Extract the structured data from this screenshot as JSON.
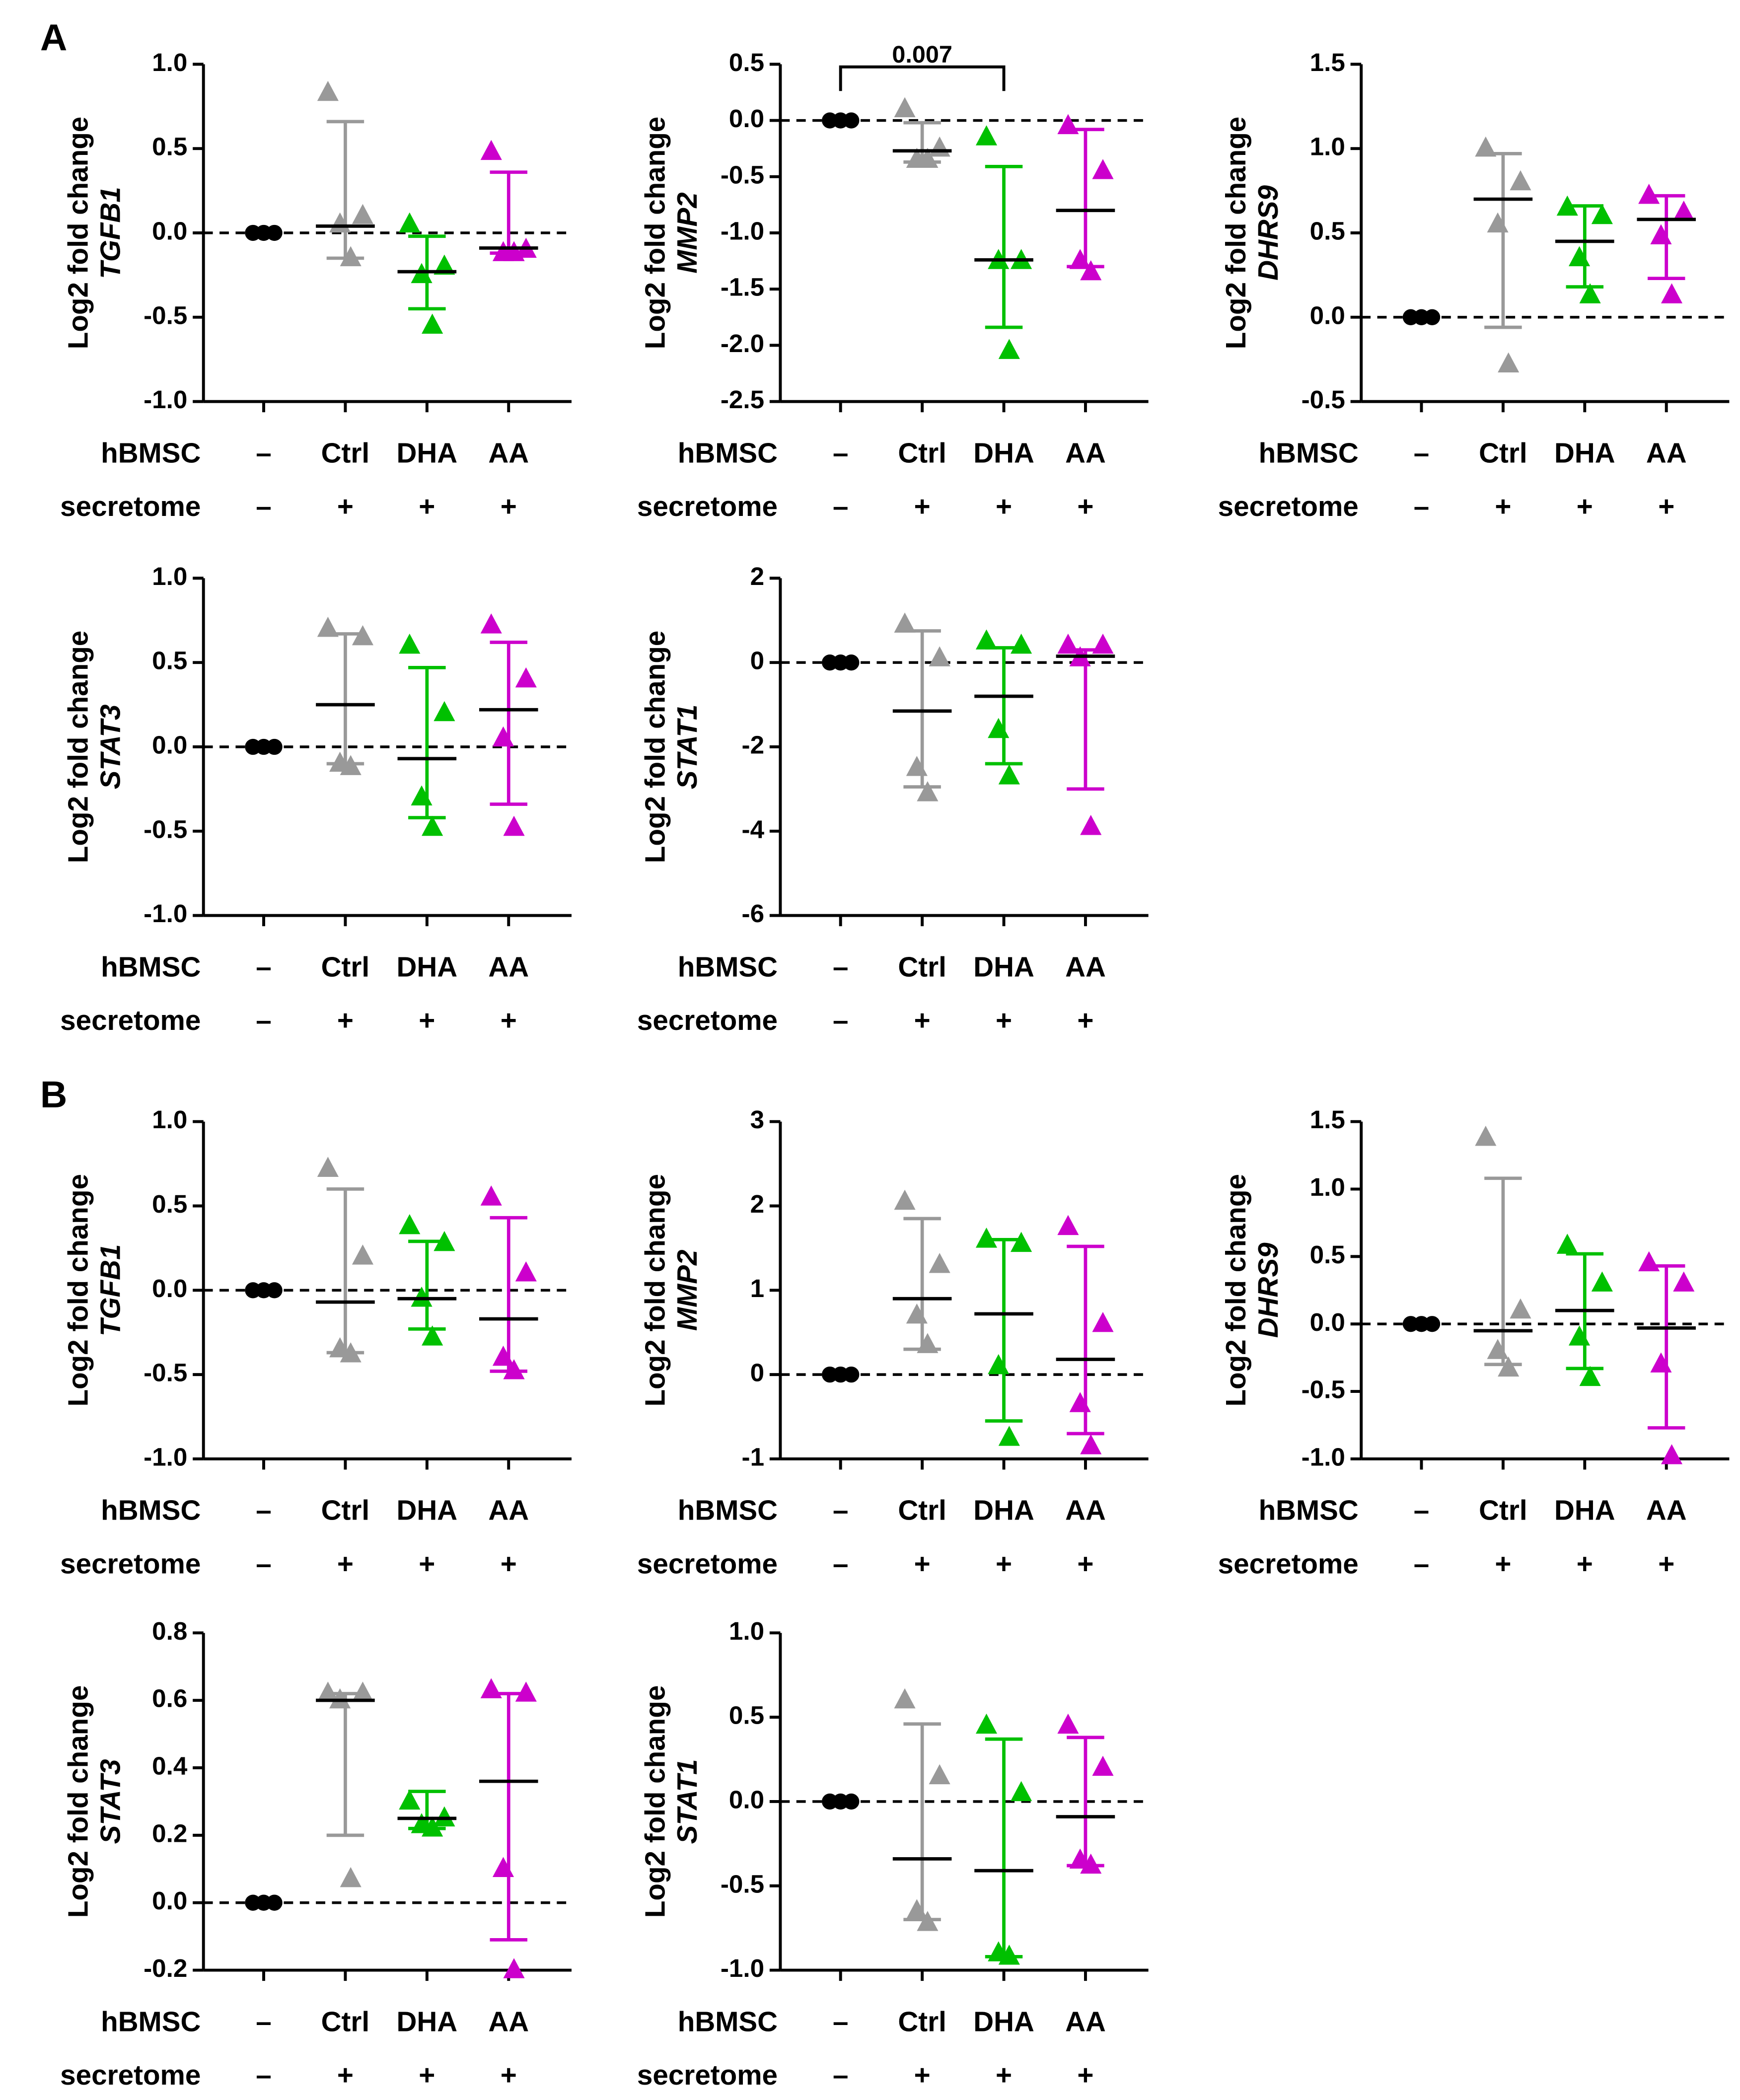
{
  "chart_data": [
    {
      "type": "scatter",
      "panel": "A",
      "ylabel": "Log2 fold change",
      "gene": "TGFB1",
      "ylim": [
        -1,
        1
      ],
      "yticks": [
        {
          "value": -1,
          "label": "-1.0"
        },
        -0.5,
        {
          "value": 0,
          "label": "0.0"
        },
        0.5,
        {
          "value": 1,
          "label": "1.0"
        }
      ],
      "reference_line": 0,
      "x_rows": [
        {
          "label": "hBMSC",
          "values": [
            "–",
            "Ctrl",
            "DHA",
            "AA"
          ]
        },
        {
          "label": "secretome",
          "values": [
            "–",
            "+",
            "+",
            "+"
          ]
        }
      ],
      "groups": [
        {
          "color": "#000000",
          "points": [
            0,
            0,
            0
          ]
        },
        {
          "color": "#999999",
          "points": [
            0.83,
            0.1,
            0.05,
            -0.15
          ],
          "median": 0.04,
          "range": [
            -0.15,
            0.66
          ]
        },
        {
          "color": "#00c000",
          "points": [
            0.05,
            -0.2,
            -0.25,
            -0.55
          ],
          "median": -0.23,
          "range": [
            -0.45,
            -0.02
          ]
        },
        {
          "color": "#cc00cc",
          "points": [
            0.48,
            -0.1,
            -0.12,
            -0.12
          ],
          "median": -0.09,
          "range": [
            -0.12,
            0.36
          ]
        }
      ]
    },
    {
      "type": "scatter",
      "ylabel": "Log2 fold change",
      "gene": "MMP2",
      "ylim": [
        -2.5,
        0.5
      ],
      "yticks": [
        -2.5,
        {
          "value": -2,
          "label": "-2.0"
        },
        -1.5,
        {
          "value": -1,
          "label": "-1.0"
        },
        -0.5,
        {
          "value": 0,
          "label": "0.0"
        },
        0.5
      ],
      "reference_line": 0,
      "x_rows": [
        {
          "label": "hBMSC",
          "values": [
            "–",
            "Ctrl",
            "DHA",
            "AA"
          ]
        },
        {
          "label": "secretome",
          "values": [
            "–",
            "+",
            "+",
            "+"
          ]
        }
      ],
      "groups": [
        {
          "color": "#000000",
          "points": [
            0,
            0,
            0
          ]
        },
        {
          "color": "#999999",
          "points": [
            0.1,
            -0.25,
            -0.35,
            -0.35
          ],
          "median": -0.27,
          "range": [
            -0.37,
            -0.02
          ]
        },
        {
          "color": "#00c000",
          "points": [
            -0.15,
            -1.25,
            -1.25,
            -2.05
          ],
          "median": -1.24,
          "range": [
            -1.84,
            -0.41
          ]
        },
        {
          "color": "#cc00cc",
          "points": [
            -0.05,
            -0.45,
            -1.25,
            -1.35
          ],
          "median": -0.8,
          "range": [
            -1.3,
            -0.08
          ]
        }
      ],
      "annotation": {
        "text": "0.007",
        "groups": [
          0,
          2
        ]
      }
    },
    {
      "type": "scatter",
      "ylabel": "Log2 fold change",
      "gene": "DHRS9",
      "ylim": [
        -0.5,
        1.5
      ],
      "yticks": [
        -0.5,
        {
          "value": 0,
          "label": "0.0"
        },
        0.5,
        {
          "value": 1,
          "label": "1.0"
        },
        1.5
      ],
      "reference_line": 0,
      "x_rows": [
        {
          "label": "hBMSC",
          "values": [
            "–",
            "Ctrl",
            "DHA",
            "AA"
          ]
        },
        {
          "label": "secretome",
          "values": [
            "–",
            "+",
            "+",
            "+"
          ]
        }
      ],
      "groups": [
        {
          "color": "#000000",
          "points": [
            0,
            0,
            0
          ]
        },
        {
          "color": "#999999",
          "points": [
            1.0,
            0.8,
            0.55,
            -0.28
          ],
          "median": 0.7,
          "range": [
            -0.06,
            0.97
          ]
        },
        {
          "color": "#00c000",
          "points": [
            0.65,
            0.6,
            0.35,
            0.13
          ],
          "median": 0.45,
          "range": [
            0.18,
            0.66
          ]
        },
        {
          "color": "#cc00cc",
          "points": [
            0.72,
            0.62,
            0.48,
            0.13
          ],
          "median": 0.58,
          "range": [
            0.23,
            0.72
          ]
        }
      ]
    },
    {
      "type": "scatter",
      "ylabel": "Log2 fold change",
      "gene": "STAT3",
      "ylim": [
        -1,
        1
      ],
      "yticks": [
        {
          "value": -1,
          "label": "-1.0"
        },
        -0.5,
        {
          "value": 0,
          "label": "0.0"
        },
        0.5,
        {
          "value": 1,
          "label": "1.0"
        }
      ],
      "reference_line": 0,
      "x_rows": [
        {
          "label": "hBMSC",
          "values": [
            "–",
            "Ctrl",
            "DHA",
            "AA"
          ]
        },
        {
          "label": "secretome",
          "values": [
            "–",
            "+",
            "+",
            "+"
          ]
        }
      ],
      "groups": [
        {
          "color": "#000000",
          "points": [
            0,
            0,
            0
          ]
        },
        {
          "color": "#999999",
          "points": [
            0.7,
            0.65,
            -0.1,
            -0.12
          ],
          "median": 0.25,
          "range": [
            -0.1,
            0.67
          ]
        },
        {
          "color": "#00c000",
          "points": [
            0.6,
            0.2,
            -0.3,
            -0.48
          ],
          "median": -0.07,
          "range": [
            -0.42,
            0.47
          ]
        },
        {
          "color": "#cc00cc",
          "points": [
            0.72,
            0.4,
            0.05,
            -0.48
          ],
          "median": 0.22,
          "range": [
            -0.34,
            0.62
          ]
        }
      ]
    },
    {
      "type": "scatter",
      "ylabel": "Log2 fold change",
      "gene": "STAT1",
      "ylim": [
        -6,
        2
      ],
      "yticks": [
        -6,
        -4,
        -2,
        0,
        2
      ],
      "reference_line": 0,
      "x_rows": [
        {
          "label": "hBMSC",
          "values": [
            "–",
            "Ctrl",
            "DHA",
            "AA"
          ]
        },
        {
          "label": "secretome",
          "values": [
            "–",
            "+",
            "+",
            "+"
          ]
        }
      ],
      "groups": [
        {
          "color": "#000000",
          "points": [
            0,
            0,
            0
          ]
        },
        {
          "color": "#999999",
          "points": [
            0.9,
            0.1,
            -2.5,
            -3.1
          ],
          "median": -1.15,
          "range": [
            -2.95,
            0.75
          ]
        },
        {
          "color": "#00c000",
          "points": [
            0.5,
            0.4,
            -1.6,
            -2.7
          ],
          "median": -0.8,
          "range": [
            -2.4,
            0.35
          ]
        },
        {
          "color": "#cc00cc",
          "points": [
            0.4,
            0.4,
            0.1,
            -3.9
          ],
          "median": 0.15,
          "range": [
            -3.0,
            0.3
          ]
        }
      ]
    },
    {
      "type": "scatter",
      "panel": "B",
      "ylabel": "Log2 fold change",
      "gene": "TGFB1",
      "ylim": [
        -1,
        1
      ],
      "yticks": [
        {
          "value": -1,
          "label": "-1.0"
        },
        -0.5,
        {
          "value": 0,
          "label": "0.0"
        },
        0.5,
        {
          "value": 1,
          "label": "1.0"
        }
      ],
      "reference_line": 0,
      "x_rows": [
        {
          "label": "hBMSC",
          "values": [
            "–",
            "Ctrl",
            "DHA",
            "AA"
          ]
        },
        {
          "label": "secretome",
          "values": [
            "–",
            "+",
            "+",
            "+"
          ]
        }
      ],
      "groups": [
        {
          "color": "#000000",
          "points": [
            0,
            0,
            0
          ]
        },
        {
          "color": "#999999",
          "points": [
            0.72,
            0.2,
            -0.35,
            -0.38
          ],
          "median": -0.07,
          "range": [
            -0.37,
            0.6
          ]
        },
        {
          "color": "#00c000",
          "points": [
            0.38,
            0.28,
            -0.05,
            -0.28
          ],
          "median": -0.05,
          "range": [
            -0.23,
            0.29
          ]
        },
        {
          "color": "#cc00cc",
          "points": [
            0.55,
            0.1,
            -0.4,
            -0.48
          ],
          "median": -0.17,
          "range": [
            -0.48,
            0.43
          ]
        }
      ]
    },
    {
      "type": "scatter",
      "ylabel": "Log2 fold change",
      "gene": "MMP2",
      "ylim": [
        -1,
        3
      ],
      "yticks": [
        -1,
        0,
        1,
        2,
        3
      ],
      "reference_line": 0,
      "x_rows": [
        {
          "label": "hBMSC",
          "values": [
            "–",
            "Ctrl",
            "DHA",
            "AA"
          ]
        },
        {
          "label": "secretome",
          "values": [
            "–",
            "+",
            "+",
            "+"
          ]
        }
      ],
      "groups": [
        {
          "color": "#000000",
          "points": [
            0,
            0,
            0
          ]
        },
        {
          "color": "#999999",
          "points": [
            2.05,
            1.3,
            0.7,
            0.35
          ],
          "median": 0.9,
          "range": [
            0.3,
            1.85
          ]
        },
        {
          "color": "#00c000",
          "points": [
            1.6,
            1.55,
            0.1,
            -0.75
          ],
          "median": 0.72,
          "range": [
            -0.55,
            1.6
          ]
        },
        {
          "color": "#cc00cc",
          "points": [
            1.75,
            0.6,
            -0.35,
            -0.85
          ],
          "median": 0.18,
          "range": [
            -0.7,
            1.52
          ]
        }
      ]
    },
    {
      "type": "scatter",
      "ylabel": "Log2 fold change",
      "gene": "DHRS9",
      "ylim": [
        -1,
        1.5
      ],
      "yticks": [
        {
          "value": -1,
          "label": "-1.0"
        },
        -0.5,
        {
          "value": 0,
          "label": "0.0"
        },
        0.5,
        {
          "value": 1,
          "label": "1.0"
        },
        1.5
      ],
      "reference_line": 0,
      "x_rows": [
        {
          "label": "hBMSC",
          "values": [
            "–",
            "Ctrl",
            "DHA",
            "AA"
          ]
        },
        {
          "label": "secretome",
          "values": [
            "–",
            "+",
            "+",
            "+"
          ]
        }
      ],
      "groups": [
        {
          "color": "#000000",
          "points": [
            0,
            0,
            0
          ]
        },
        {
          "color": "#999999",
          "points": [
            1.38,
            0.1,
            -0.2,
            -0.33
          ],
          "median": -0.05,
          "range": [
            -0.3,
            1.08
          ]
        },
        {
          "color": "#00c000",
          "points": [
            0.58,
            0.3,
            -0.1,
            -0.4
          ],
          "median": 0.1,
          "range": [
            -0.33,
            0.52
          ]
        },
        {
          "color": "#cc00cc",
          "points": [
            0.45,
            0.3,
            -0.3,
            -0.98
          ],
          "median": -0.03,
          "range": [
            -0.77,
            0.43
          ]
        }
      ]
    },
    {
      "type": "scatter",
      "ylabel": "Log2 fold change",
      "gene": "STAT3",
      "ylim": [
        -0.2,
        0.8
      ],
      "yticks": [
        -0.2,
        {
          "value": 0,
          "label": "0.0"
        },
        0.2,
        0.4,
        0.6,
        0.8
      ],
      "reference_line": 0,
      "x_rows": [
        {
          "label": "hBMSC",
          "values": [
            "–",
            "Ctrl",
            "DHA",
            "AA"
          ]
        },
        {
          "label": "secretome",
          "values": [
            "–",
            "+",
            "+",
            "+"
          ]
        }
      ],
      "groups": [
        {
          "color": "#000000",
          "points": [
            0,
            0,
            0
          ]
        },
        {
          "color": "#999999",
          "points": [
            0.62,
            0.62,
            0.6,
            0.07
          ],
          "median": 0.6,
          "range": [
            0.2,
            0.62
          ]
        },
        {
          "color": "#00c000",
          "points": [
            0.3,
            0.25,
            0.23,
            0.22
          ],
          "median": 0.25,
          "range": [
            0.22,
            0.33
          ]
        },
        {
          "color": "#cc00cc",
          "points": [
            0.63,
            0.62,
            0.1,
            -0.2
          ],
          "median": 0.36,
          "range": [
            -0.11,
            0.62
          ]
        }
      ]
    },
    {
      "type": "scatter",
      "ylabel": "Log2 fold change",
      "gene": "STAT1",
      "ylim": [
        -1,
        1
      ],
      "yticks": [
        {
          "value": -1,
          "label": "-1.0"
        },
        -0.5,
        {
          "value": 0,
          "label": "0.0"
        },
        0.5,
        {
          "value": 1,
          "label": "1.0"
        }
      ],
      "reference_line": 0,
      "x_rows": [
        {
          "label": "hBMSC",
          "values": [
            "–",
            "Ctrl",
            "DHA",
            "AA"
          ]
        },
        {
          "label": "secretome",
          "values": [
            "–",
            "+",
            "+",
            "+"
          ]
        }
      ],
      "groups": [
        {
          "color": "#000000",
          "points": [
            0,
            0,
            0
          ]
        },
        {
          "color": "#999999",
          "points": [
            0.6,
            0.15,
            -0.65,
            -0.72
          ],
          "median": -0.34,
          "range": [
            -0.7,
            0.46
          ]
        },
        {
          "color": "#00c000",
          "points": [
            0.45,
            0.05,
            -0.9,
            -0.92
          ],
          "median": -0.41,
          "range": [
            -0.92,
            0.37
          ]
        },
        {
          "color": "#cc00cc",
          "points": [
            0.45,
            0.2,
            -0.35,
            -0.38
          ],
          "median": -0.09,
          "range": [
            -0.38,
            0.38
          ]
        }
      ]
    }
  ]
}
